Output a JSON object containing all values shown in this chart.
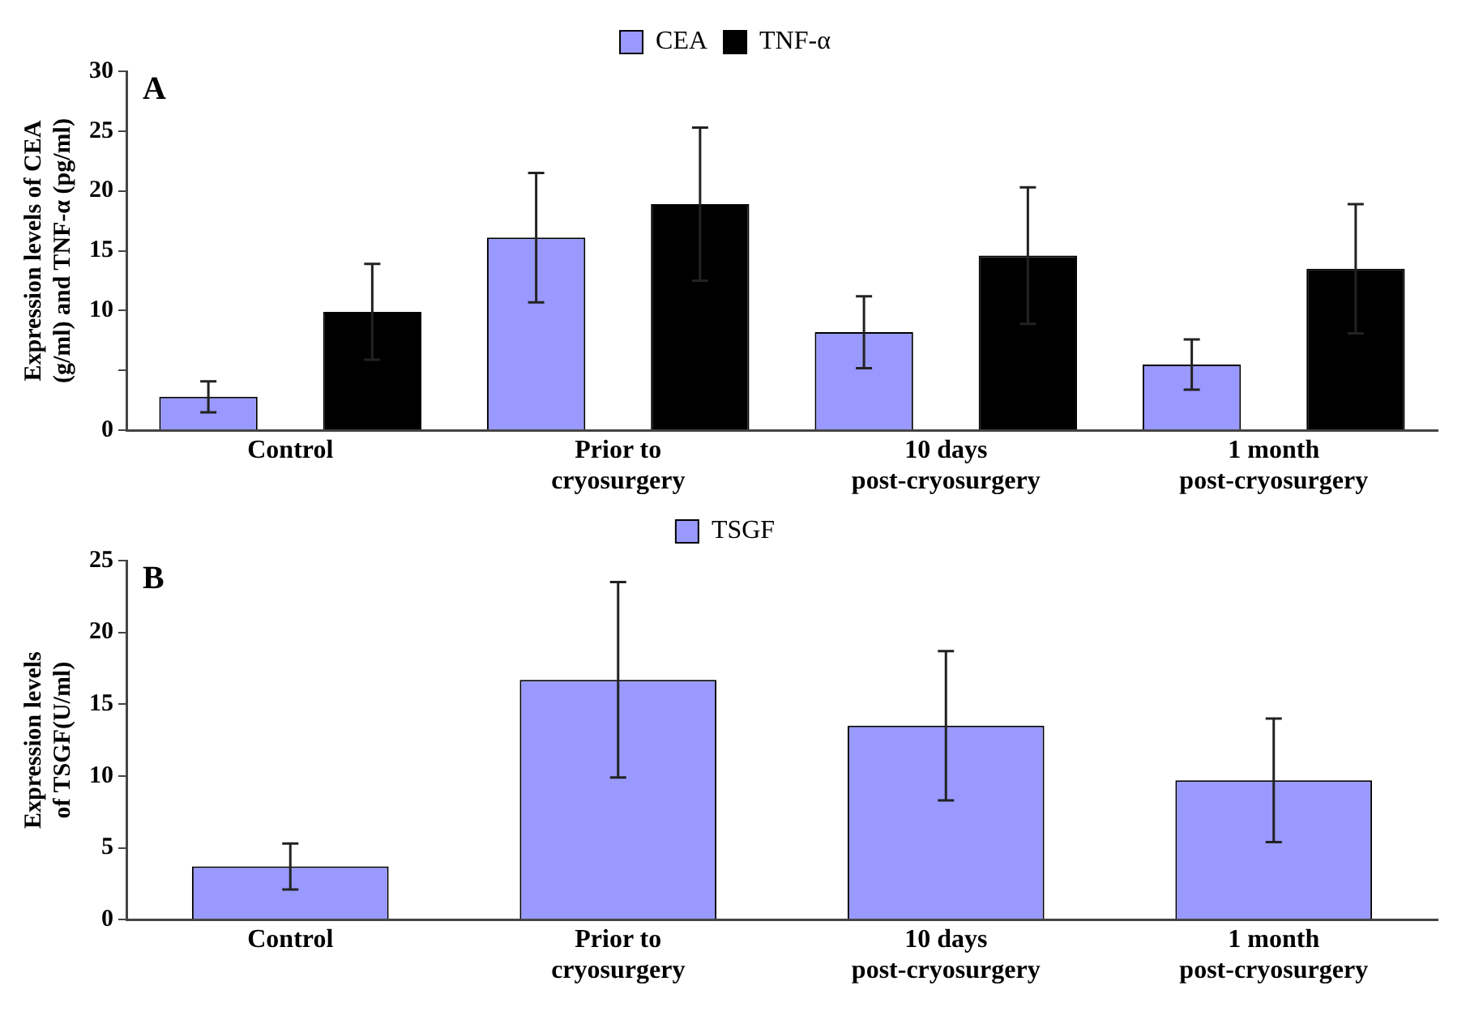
{
  "chart_data": [
    {
      "type": "bar",
      "ylabel": "Expression levels of CEA (g/ml) and TNF-α (pg/ml)",
      "annotations": [
        "A"
      ],
      "categories": [
        "Control",
        "Prior to cryosurgery",
        "10 days post-cryosurgery",
        "1 month post-cryosurgery"
      ],
      "series": [
        {
          "name": "CEA",
          "color": "#9999ff",
          "values": [
            2.8,
            16.1,
            8.2,
            5.5
          ],
          "errors": [
            1.3,
            5.4,
            3.0,
            2.1
          ]
        },
        {
          "name": "TNF-α",
          "color": "#000000",
          "values": [
            9.9,
            18.9,
            14.6,
            13.5
          ],
          "errors": [
            4.0,
            6.4,
            5.7,
            5.4
          ]
        }
      ],
      "ylim": [
        0,
        30
      ],
      "yticks": [
        0,
        {
          "value": 5,
          "label": null
        },
        10,
        15,
        20,
        25,
        30
      ],
      "legend": "top"
    },
    {
      "type": "bar",
      "ylabel": "Expression levels of TSGF(U/ml)",
      "annotations": [
        "B"
      ],
      "categories": [
        "Control",
        "Prior to cryosurgery",
        "10 days post-cryosurgery",
        "1 month post-cryosurgery"
      ],
      "series": [
        {
          "name": "TSGF",
          "color": "#9999ff",
          "values": [
            3.7,
            16.7,
            13.5,
            9.7
          ],
          "errors": [
            1.6,
            6.8,
            5.2,
            4.3
          ]
        }
      ],
      "ylim": [
        0,
        25
      ],
      "yticks": [
        0,
        5,
        10,
        15,
        20,
        25
      ],
      "legend": "top"
    }
  ]
}
